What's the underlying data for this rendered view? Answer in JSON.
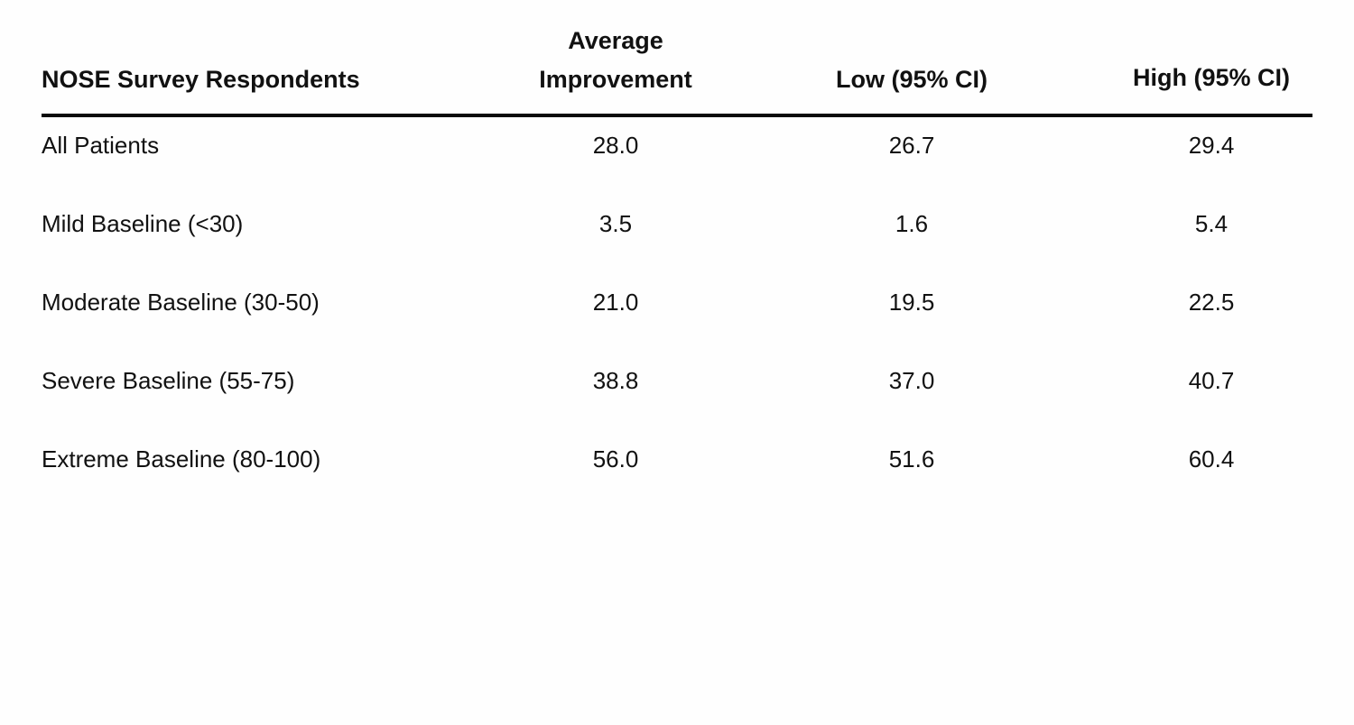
{
  "table": {
    "headers": [
      {
        "lines": [
          "NOSE Survey Respondents"
        ]
      },
      {
        "lines": [
          "Average",
          "Improvement"
        ]
      },
      {
        "lines": [
          "Low (95% CI)"
        ]
      },
      {
        "lines": [
          "High (95% CI)"
        ]
      }
    ],
    "rows": [
      [
        "All Patients",
        "28.0",
        "26.7",
        "29.4"
      ],
      [
        "Mild Baseline (<30)",
        "3.5",
        "1.6",
        "5.4"
      ],
      [
        "Moderate Baseline (30-50)",
        "21.0",
        "19.5",
        "22.5"
      ],
      [
        "Severe Baseline (55-75)",
        "38.8",
        "37.0",
        "40.7"
      ],
      [
        "Extreme Baseline (80-100)",
        "56.0",
        "51.6",
        "60.4"
      ]
    ]
  }
}
